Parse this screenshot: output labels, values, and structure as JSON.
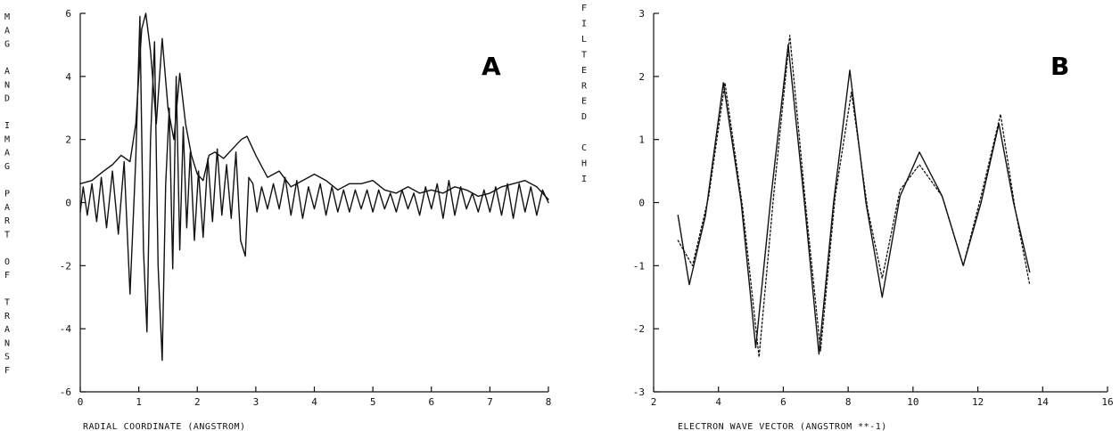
{
  "chart_data": [
    {
      "type": "line",
      "panel_label": "A",
      "xlabel": "RADIAL COORDINATE (ANGSTROM)",
      "ylabel": "MAG AND IMAG PART OF TRANSF",
      "xlim": [
        0,
        8
      ],
      "ylim": [
        -6,
        6
      ],
      "xticks": [
        "0",
        "1",
        "2",
        "3",
        "4",
        "5",
        "6",
        "7",
        "8"
      ],
      "yticks": [
        "-6",
        "-4",
        "-2",
        "0",
        "2",
        "4",
        "6"
      ],
      "grid": false,
      "series": [
        {
          "style": "solid",
          "x": [
            0.0,
            0.2,
            0.4,
            0.55,
            0.7,
            0.85,
            0.95,
            1.05,
            1.12,
            1.2,
            1.3,
            1.4,
            1.5,
            1.6,
            1.7,
            1.8,
            1.9,
            2.0,
            2.1,
            2.2,
            2.3,
            2.45,
            2.6,
            2.75,
            2.85,
            3.0,
            3.2,
            3.4,
            3.6,
            3.8,
            4.0,
            4.2,
            4.4,
            4.6,
            4.8,
            5.0,
            5.2,
            5.4,
            5.6,
            5.8,
            6.0,
            6.2,
            6.4,
            6.6,
            6.8,
            7.0,
            7.2,
            7.4,
            7.6,
            7.8,
            8.0
          ],
          "y": [
            0.6,
            0.7,
            1.0,
            1.2,
            1.5,
            1.3,
            2.5,
            5.5,
            6.0,
            4.8,
            2.5,
            5.2,
            3.0,
            2.0,
            4.1,
            2.5,
            1.5,
            0.9,
            0.7,
            1.5,
            1.6,
            1.4,
            1.7,
            2.0,
            2.1,
            1.5,
            0.8,
            1.0,
            0.5,
            0.7,
            0.9,
            0.7,
            0.4,
            0.6,
            0.6,
            0.7,
            0.4,
            0.3,
            0.5,
            0.3,
            0.4,
            0.3,
            0.5,
            0.4,
            0.2,
            0.3,
            0.5,
            0.6,
            0.7,
            0.5,
            0.1
          ]
        },
        {
          "style": "solid",
          "x": [
            0.0,
            0.05,
            0.12,
            0.2,
            0.28,
            0.36,
            0.45,
            0.55,
            0.65,
            0.75,
            0.85,
            0.95,
            1.02,
            1.08,
            1.14,
            1.2,
            1.27,
            1.33,
            1.4,
            1.46,
            1.52,
            1.58,
            1.64,
            1.7,
            1.76,
            1.82,
            1.88,
            1.95,
            2.02,
            2.1,
            2.18,
            2.26,
            2.34,
            2.42,
            2.5,
            2.58,
            2.66,
            2.74,
            2.82,
            2.88,
            2.95,
            3.02,
            3.1,
            3.2,
            3.3,
            3.4,
            3.5,
            3.6,
            3.7,
            3.8,
            3.9,
            4.0,
            4.1,
            4.2,
            4.3,
            4.4,
            4.5,
            4.6,
            4.7,
            4.8,
            4.9,
            5.0,
            5.1,
            5.2,
            5.3,
            5.4,
            5.5,
            5.6,
            5.7,
            5.8,
            5.9,
            6.0,
            6.1,
            6.2,
            6.3,
            6.4,
            6.5,
            6.6,
            6.7,
            6.8,
            6.9,
            7.0,
            7.1,
            7.2,
            7.3,
            7.4,
            7.5,
            7.6,
            7.7,
            7.8,
            7.9,
            8.0
          ],
          "y": [
            -0.3,
            0.5,
            -0.4,
            0.6,
            -0.6,
            0.8,
            -0.8,
            1.0,
            -1.0,
            1.3,
            -2.9,
            1.4,
            5.9,
            -1.5,
            -4.1,
            2.0,
            5.1,
            -2.0,
            -5.0,
            0.6,
            3.0,
            -2.1,
            4.0,
            -1.5,
            2.4,
            -0.8,
            1.6,
            -1.2,
            1.0,
            -1.1,
            1.4,
            -0.6,
            1.7,
            -0.4,
            1.2,
            -0.5,
            1.6,
            -1.2,
            -1.7,
            0.8,
            0.6,
            -0.3,
            0.5,
            -0.2,
            0.6,
            -0.2,
            0.8,
            -0.4,
            0.7,
            -0.5,
            0.5,
            -0.2,
            0.6,
            -0.4,
            0.5,
            -0.3,
            0.4,
            -0.3,
            0.4,
            -0.2,
            0.4,
            -0.3,
            0.4,
            -0.2,
            0.3,
            -0.3,
            0.4,
            -0.2,
            0.3,
            -0.4,
            0.5,
            -0.2,
            0.6,
            -0.5,
            0.7,
            -0.4,
            0.5,
            -0.2,
            0.3,
            -0.3,
            0.4,
            -0.3,
            0.5,
            -0.4,
            0.6,
            -0.5,
            0.6,
            -0.3,
            0.5,
            -0.4,
            0.4,
            0.0
          ]
        }
      ]
    },
    {
      "type": "line",
      "panel_label": "B",
      "xlabel": "ELECTRON WAVE VECTOR (ANGSTROM **-1)",
      "ylabel": "FILTERED CHI",
      "xlim": [
        2,
        16
      ],
      "ylim": [
        -3,
        3
      ],
      "xticks": [
        "2",
        "4",
        "6",
        "8",
        "10",
        "12",
        "14",
        "16"
      ],
      "yticks": [
        "-3",
        "-2",
        "-1",
        "0",
        "1",
        "2",
        "3"
      ],
      "grid": false,
      "series": [
        {
          "style": "solid",
          "x": [
            2.75,
            3.1,
            3.6,
            4.15,
            4.7,
            5.15,
            5.6,
            6.15,
            6.65,
            7.1,
            7.55,
            8.05,
            8.55,
            9.05,
            9.6,
            10.2,
            10.9,
            11.55,
            12.1,
            12.65,
            13.1,
            13.6
          ],
          "y": [
            -0.2,
            -1.3,
            -0.2,
            1.9,
            0.0,
            -2.3,
            0.0,
            2.5,
            0.0,
            -2.4,
            0.0,
            2.1,
            0.0,
            -1.5,
            0.1,
            0.8,
            0.1,
            -1.0,
            0.0,
            1.25,
            0.0,
            -1.1
          ]
        },
        {
          "style": "dotted",
          "x": [
            2.75,
            3.2,
            3.7,
            4.2,
            4.75,
            5.25,
            5.7,
            6.2,
            6.7,
            7.15,
            7.6,
            8.1,
            8.6,
            9.05,
            9.6,
            10.2,
            10.9,
            11.55,
            12.1,
            12.7,
            13.15,
            13.6
          ],
          "y": [
            -0.6,
            -1.0,
            0.1,
            1.9,
            -0.1,
            -2.45,
            0.1,
            2.65,
            -0.1,
            -2.35,
            0.1,
            1.75,
            -0.1,
            -1.2,
            0.2,
            0.6,
            0.1,
            -1.0,
            0.1,
            1.4,
            -0.1,
            -1.3
          ]
        }
      ]
    }
  ]
}
